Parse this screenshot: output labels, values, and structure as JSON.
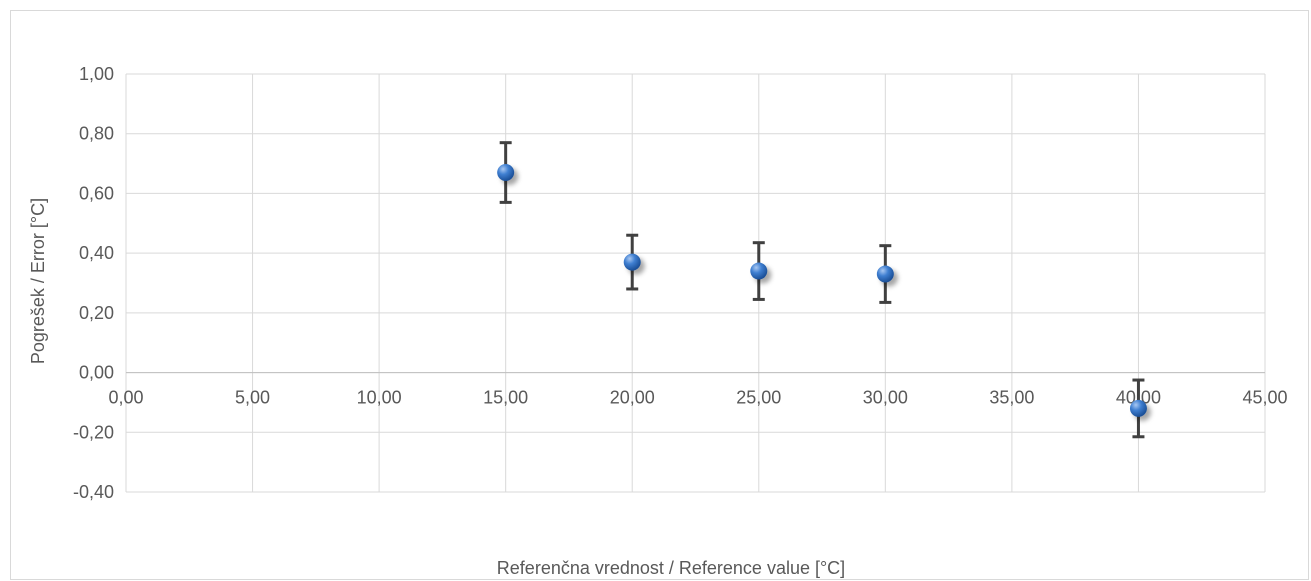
{
  "chart_data": {
    "type": "scatter",
    "title": "",
    "xlabel": "Referenčna vrednost / Reference value [°C]",
    "ylabel": "Pogrešek / Error [°C]",
    "xlim": [
      0,
      45
    ],
    "ylim": [
      -0.4,
      1.0
    ],
    "xticks": [
      0,
      5,
      10,
      15,
      20,
      25,
      30,
      35,
      40,
      45
    ],
    "yticks": [
      -0.4,
      -0.2,
      0.0,
      0.2,
      0.4,
      0.6,
      0.8,
      1.0
    ],
    "xtick_labels": [
      "0,00",
      "5,00",
      "10,00",
      "15,00",
      "20,00",
      "25,00",
      "30,00",
      "35,00",
      "40,00",
      "45,00"
    ],
    "ytick_labels": [
      "-0,40",
      "-0,20",
      "0,00",
      "0,20",
      "0,40",
      "0,60",
      "0,80",
      "1,00"
    ],
    "grid": true,
    "legend": "none",
    "series": [
      {
        "marker_color": "#2e6fc4",
        "errorbar_color": "#404040",
        "points": [
          {
            "x": 15,
            "y": 0.67,
            "err": 0.1
          },
          {
            "x": 20,
            "y": 0.37,
            "err": 0.09
          },
          {
            "x": 25,
            "y": 0.34,
            "err": 0.095
          },
          {
            "x": 30,
            "y": 0.33,
            "err": 0.095
          },
          {
            "x": 40,
            "y": -0.12,
            "err": 0.095
          }
        ]
      }
    ]
  }
}
